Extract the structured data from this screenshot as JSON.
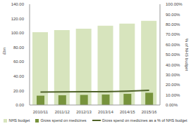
{
  "chart_data": {
    "type": "bar",
    "y_label": "£bn",
    "y2_label": "% of NHS budget",
    "categories": [
      "2010/11",
      "2011/12",
      "2012/13",
      "2013/14",
      "2014/15",
      "2015/16"
    ],
    "series": [
      {
        "name": "NHS budget",
        "type": "bar",
        "color": "#d7e4bd",
        "values": [
          101,
          104,
          106,
          110,
          113,
          117
        ]
      },
      {
        "name": "Gross spend on medicines",
        "type": "bar",
        "color": "#77933c",
        "values": [
          13,
          13.5,
          14,
          14.5,
          15.5,
          17
        ]
      },
      {
        "name": "Gross spend on medicines as a % of NHS budget",
        "type": "line",
        "axis": "y2",
        "color": "#4f6228",
        "values": [
          12.9,
          13,
          13.2,
          13.2,
          13.7,
          14.5
        ]
      }
    ],
    "ylim": [
      0,
      140
    ],
    "yticks": [
      {
        "value": 0,
        "label": "0.00"
      },
      {
        "value": 20,
        "label": "20.00"
      },
      {
        "value": 40,
        "label": "40.00"
      },
      {
        "value": 60,
        "label": "60.00"
      },
      {
        "value": 80,
        "label": "80.00"
      },
      {
        "value": 100,
        "label": "100.00"
      },
      {
        "value": 120,
        "label": "120.00"
      },
      {
        "value": 140,
        "label": "140.00"
      }
    ],
    "y2lim": [
      0,
      100
    ],
    "y2ticks": [
      {
        "value": 0,
        "label": "0.00%"
      },
      {
        "value": 10,
        "label": "10.00%"
      },
      {
        "value": 20,
        "label": "20.00%"
      },
      {
        "value": 30,
        "label": "30.00%"
      },
      {
        "value": 40,
        "label": "40.00%"
      },
      {
        "value": 50,
        "label": "50.00%"
      },
      {
        "value": 60,
        "label": "60.00%"
      },
      {
        "value": 70,
        "label": "70.00%"
      },
      {
        "value": 80,
        "label": "80.00%"
      },
      {
        "value": 90,
        "label": "90.00%"
      },
      {
        "value": 100,
        "label": "100.00%"
      }
    ],
    "legend": "bottom"
  }
}
